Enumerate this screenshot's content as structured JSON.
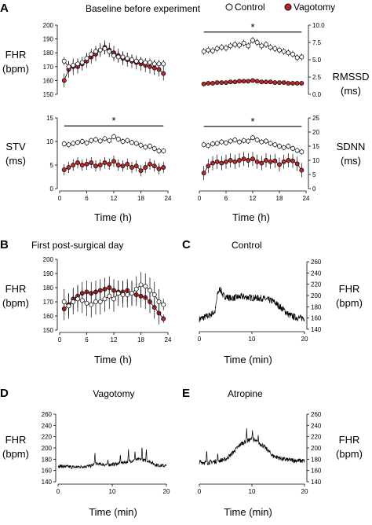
{
  "figure": {
    "panel_a": {
      "letter": "A",
      "title": "Baseline before experiment",
      "legend": {
        "control": "Control",
        "vagotomy": "Vagotomy"
      },
      "x_label": "Time  (h)",
      "x_ticks": [
        "0",
        "6",
        "12",
        "18",
        "24"
      ],
      "labels": {
        "fhr": [
          "FHR",
          "(bpm)"
        ],
        "rmssd": [
          "RMSSD",
          "(ms)"
        ],
        "stv": [
          "STV",
          "(ms)"
        ],
        "sdnn": [
          "SDNN",
          "(ms)"
        ]
      },
      "significance": "*"
    },
    "panel_b": {
      "letter": "B",
      "title": "First post-surgical day",
      "x_label": "Time  (h)",
      "y_label": [
        "FHR",
        "(bpm)"
      ]
    },
    "panel_c": {
      "letter": "C",
      "title": "Control",
      "x_label": "Time (min)",
      "y_label": [
        "FHR",
        "(bpm)"
      ]
    },
    "panel_d": {
      "letter": "D",
      "title": "Vagotomy",
      "x_label": "Time (min)",
      "y_label": [
        "FHR",
        "(bpm)"
      ]
    },
    "panel_e": {
      "letter": "E",
      "title": "Atropine",
      "x_label": "Time (min)",
      "y_label": [
        "FHR",
        "(bpm)"
      ]
    }
  },
  "colors": {
    "vagotomy": "#c0262c",
    "control": "#ffffff",
    "line": "#000000"
  },
  "chart_data": [
    {
      "id": "a_fhr",
      "type": "line",
      "ylabel": "FHR (bpm)",
      "ylim": [
        150,
        200
      ],
      "yticks": [
        "150",
        "160",
        "170",
        "180",
        "190",
        "200"
      ],
      "xlim": [
        0,
        24
      ],
      "x": [
        1,
        2,
        3,
        4,
        5,
        6,
        7,
        8,
        9,
        10,
        11,
        12,
        13,
        14,
        15,
        16,
        17,
        18,
        19,
        20,
        21,
        22,
        23
      ],
      "series": [
        {
          "name": "Control",
          "values": [
            174,
            170,
            171,
            172,
            173,
            176,
            179,
            181,
            182,
            183,
            181,
            178,
            177,
            177,
            176,
            175,
            174,
            174,
            173,
            173,
            172,
            172,
            172
          ],
          "err": [
            3,
            4,
            4,
            4,
            4,
            4,
            4,
            4,
            4,
            4,
            4,
            4,
            4,
            4,
            4,
            3,
            3,
            3,
            3,
            3,
            3,
            3,
            3
          ]
        },
        {
          "name": "Vagotomy",
          "values": [
            160,
            168,
            170,
            170,
            172,
            174,
            177,
            179,
            182,
            184,
            182,
            180,
            178,
            176,
            175,
            174,
            173,
            172,
            171,
            170,
            169,
            168,
            165
          ],
          "err": [
            5,
            6,
            6,
            5,
            5,
            5,
            5,
            5,
            5,
            5,
            5,
            5,
            5,
            5,
            5,
            5,
            5,
            5,
            5,
            5,
            5,
            5,
            5
          ]
        }
      ]
    },
    {
      "id": "a_rmssd",
      "type": "line",
      "ylabel": "RMSSD (ms)",
      "ylim": [
        0,
        10
      ],
      "yticks": [
        "0.0",
        "2.5",
        "5.0",
        "7.5",
        "10.0"
      ],
      "xlim": [
        0,
        24
      ],
      "x": [
        1,
        2,
        3,
        4,
        5,
        6,
        7,
        8,
        9,
        10,
        11,
        12,
        13,
        14,
        15,
        16,
        17,
        18,
        19,
        20,
        21,
        22,
        23
      ],
      "series": [
        {
          "name": "Control",
          "values": [
            6.2,
            6.4,
            6.3,
            6.6,
            6.8,
            6.7,
            7.0,
            7.2,
            7.1,
            7.4,
            7.0,
            7.8,
            7.5,
            7.0,
            7.2,
            6.8,
            6.6,
            6.4,
            6.2,
            6.0,
            5.8,
            5.3,
            5.4
          ],
          "err": [
            0.5,
            0.5,
            0.5,
            0.5,
            0.5,
            0.5,
            0.5,
            0.5,
            0.5,
            0.5,
            0.5,
            0.5,
            0.5,
            0.5,
            0.5,
            0.5,
            0.5,
            0.5,
            0.5,
            0.5,
            0.5,
            0.5,
            0.5
          ]
        },
        {
          "name": "Vagotomy",
          "values": [
            1.5,
            1.6,
            1.6,
            1.7,
            1.7,
            1.7,
            1.8,
            1.8,
            1.9,
            1.9,
            1.9,
            2.0,
            1.9,
            1.8,
            1.8,
            1.8,
            1.7,
            1.7,
            1.7,
            1.6,
            1.6,
            1.6,
            1.6
          ],
          "err": [
            0.2,
            0.2,
            0.2,
            0.2,
            0.2,
            0.2,
            0.2,
            0.2,
            0.2,
            0.2,
            0.2,
            0.2,
            0.2,
            0.2,
            0.2,
            0.2,
            0.2,
            0.2,
            0.2,
            0.2,
            0.2,
            0.2,
            0.2
          ]
        }
      ],
      "significance": {
        "x": [
          1,
          23
        ],
        "y": 9.0
      }
    },
    {
      "id": "a_stv",
      "type": "line",
      "ylabel": "STV (ms)",
      "ylim": [
        0,
        15
      ],
      "yticks": [
        "0",
        "5",
        "10",
        "15"
      ],
      "xlim": [
        0,
        24
      ],
      "x": [
        1,
        2,
        3,
        4,
        5,
        6,
        7,
        8,
        9,
        10,
        11,
        12,
        13,
        14,
        15,
        16,
        17,
        18,
        19,
        20,
        21,
        22,
        23
      ],
      "series": [
        {
          "name": "Control",
          "values": [
            9.5,
            9.3,
            9.6,
            9.8,
            10.0,
            9.7,
            10.2,
            10.4,
            10.1,
            10.6,
            10.2,
            11.0,
            10.5,
            10.0,
            10.2,
            9.8,
            9.6,
            9.2,
            8.8,
            9.0,
            8.5,
            8.0,
            8.0
          ],
          "err": [
            0.6,
            0.6,
            0.6,
            0.6,
            0.6,
            0.6,
            0.6,
            0.6,
            0.6,
            0.6,
            0.6,
            0.6,
            0.6,
            0.6,
            0.6,
            0.6,
            0.6,
            0.6,
            0.6,
            0.6,
            0.6,
            0.6,
            0.6
          ]
        },
        {
          "name": "Vagotomy",
          "values": [
            4.0,
            4.5,
            5.0,
            5.5,
            5.0,
            5.2,
            5.5,
            4.8,
            5.0,
            5.5,
            5.2,
            5.8,
            5.0,
            4.8,
            5.2,
            4.5,
            4.8,
            3.8,
            4.5,
            5.2,
            4.8,
            4.2,
            4.5
          ],
          "err": [
            1.2,
            1.2,
            1.2,
            1.2,
            1.2,
            1.2,
            1.2,
            1.2,
            1.2,
            1.2,
            1.2,
            1.2,
            1.2,
            1.2,
            1.2,
            1.2,
            1.2,
            1.2,
            1.2,
            1.2,
            1.2,
            1.2,
            1.2
          ]
        }
      ],
      "significance": {
        "x": [
          1,
          23
        ],
        "y": 13.3
      }
    },
    {
      "id": "a_sdnn",
      "type": "line",
      "ylabel": "SDNN (ms)",
      "ylim": [
        0,
        25
      ],
      "yticks": [
        "0",
        "5",
        "10",
        "15",
        "20",
        "25"
      ],
      "xlim": [
        0,
        24
      ],
      "x": [
        1,
        2,
        3,
        4,
        5,
        6,
        7,
        8,
        9,
        10,
        11,
        12,
        13,
        14,
        15,
        16,
        17,
        18,
        19,
        20,
        21,
        22,
        23
      ],
      "series": [
        {
          "name": "Control",
          "values": [
            15.5,
            15.2,
            15.8,
            16.0,
            16.5,
            16.2,
            16.8,
            17.2,
            16.5,
            17.0,
            16.8,
            18.0,
            17.2,
            16.5,
            16.8,
            16.0,
            15.5,
            15.0,
            14.5,
            15.0,
            14.2,
            13.5,
            13.0
          ],
          "err": [
            1.0,
            1.0,
            1.0,
            1.0,
            1.0,
            1.0,
            1.0,
            1.0,
            1.0,
            1.0,
            1.0,
            1.0,
            1.0,
            1.0,
            1.0,
            1.0,
            1.0,
            1.0,
            1.0,
            1.0,
            1.0,
            1.0,
            1.0
          ]
        },
        {
          "name": "Vagotomy",
          "values": [
            5.5,
            8.0,
            9.0,
            9.5,
            9.0,
            9.5,
            10.0,
            9.5,
            10.0,
            10.5,
            10.0,
            10.5,
            9.5,
            9.0,
            10.0,
            9.5,
            9.8,
            8.5,
            9.5,
            10.0,
            9.8,
            8.8,
            6.5
          ],
          "err": [
            2.5,
            2.5,
            2.5,
            2.5,
            2.5,
            2.5,
            2.5,
            2.5,
            2.5,
            2.5,
            2.5,
            2.5,
            2.5,
            2.5,
            2.5,
            2.5,
            2.5,
            2.5,
            2.5,
            2.5,
            2.5,
            2.5,
            2.5
          ]
        }
      ],
      "significance": {
        "x": [
          1,
          23
        ],
        "y": 22.0
      }
    },
    {
      "id": "b_fhr",
      "type": "line",
      "ylabel": "FHR (bpm)",
      "ylim": [
        150,
        200
      ],
      "yticks": [
        "150",
        "160",
        "170",
        "180",
        "190",
        "200"
      ],
      "xlim": [
        0,
        24
      ],
      "x": [
        1,
        2,
        3,
        4,
        5,
        6,
        7,
        8,
        9,
        10,
        11,
        12,
        13,
        14,
        15,
        16,
        17,
        18,
        19,
        20,
        21,
        22,
        23
      ],
      "series": [
        {
          "name": "Control",
          "values": [
            170,
            167,
            170,
            172,
            171,
            169,
            168,
            170,
            170,
            172,
            174,
            172,
            176,
            175,
            175,
            176,
            179,
            182,
            181,
            178,
            175,
            170,
            168
          ],
          "err": [
            9,
            9,
            9,
            9,
            9,
            9,
            9,
            9,
            9,
            9,
            9,
            9,
            9,
            9,
            9,
            9,
            9,
            9,
            9,
            9,
            9,
            9,
            4
          ]
        },
        {
          "name": "Vagotomy",
          "values": [
            165,
            168,
            172,
            174,
            176,
            177,
            176,
            177,
            178,
            179,
            180,
            178,
            177,
            177,
            178,
            176,
            175,
            174,
            173,
            170,
            166,
            162,
            158
          ],
          "err": [
            8,
            8,
            8,
            8,
            8,
            8,
            8,
            8,
            8,
            8,
            8,
            8,
            8,
            8,
            8,
            8,
            8,
            8,
            8,
            8,
            8,
            8,
            3
          ]
        }
      ]
    },
    {
      "id": "c_trace",
      "type": "line",
      "ylabel": "FHR (bpm)",
      "ylim": [
        140,
        260
      ],
      "yticks": [
        "140",
        "160",
        "180",
        "200",
        "220",
        "240",
        "260"
      ],
      "xlim": [
        0,
        20
      ],
      "xticks": [
        "0",
        "10",
        "20"
      ],
      "series": [
        {
          "name": "",
          "keypoints": [
            [
              0,
              158
            ],
            [
              2,
              165
            ],
            [
              3,
              172
            ],
            [
              3.5,
              205
            ],
            [
              4,
              212
            ],
            [
              4.5,
              200
            ],
            [
              6,
              195
            ],
            [
              8,
              198
            ],
            [
              10,
              196
            ],
            [
              12,
              195
            ],
            [
              14,
              190
            ],
            [
              16,
              175
            ],
            [
              17,
              166
            ],
            [
              18,
              162
            ],
            [
              19,
              160
            ],
            [
              20,
              160
            ]
          ],
          "noise": 6
        }
      ]
    },
    {
      "id": "d_trace",
      "type": "line",
      "ylabel": "FHR (bpm)",
      "ylim": [
        140,
        260
      ],
      "yticks": [
        "140",
        "160",
        "180",
        "200",
        "220",
        "240",
        "260"
      ],
      "xlim": [
        0,
        20
      ],
      "xticks": [
        "0",
        "10",
        "20"
      ],
      "series": [
        {
          "name": "",
          "keypoints": [
            [
              0,
              168
            ],
            [
              3,
              166
            ],
            [
              6,
              168
            ],
            [
              7,
              172
            ],
            [
              9,
              170
            ],
            [
              11,
              172
            ],
            [
              13,
              176
            ],
            [
              15,
              180
            ],
            [
              17,
              176
            ],
            [
              18,
              170
            ],
            [
              20,
              168
            ]
          ],
          "noise": 3,
          "spikes": [
            [
              6.8,
              193
            ],
            [
              9.2,
              180
            ],
            [
              11.5,
              190
            ],
            [
              13.0,
              198
            ],
            [
              14.2,
              195
            ],
            [
              15.5,
              205
            ],
            [
              16.3,
              200
            ]
          ]
        }
      ]
    },
    {
      "id": "e_trace",
      "type": "line",
      "ylabel": "FHR (bpm)",
      "ylim": [
        140,
        260
      ],
      "yticks": [
        "140",
        "160",
        "180",
        "200",
        "220",
        "240",
        "260"
      ],
      "xlim": [
        0,
        20
      ],
      "xticks": [
        "0",
        "10",
        "20"
      ],
      "series": [
        {
          "name": "",
          "keypoints": [
            [
              0,
              175
            ],
            [
              1.5,
              174
            ],
            [
              3,
              176
            ],
            [
              5,
              180
            ],
            [
              6,
              188
            ],
            [
              8,
              208
            ],
            [
              9,
              212
            ],
            [
              10,
              216
            ],
            [
              12,
              205
            ],
            [
              13,
              196
            ],
            [
              14,
              186
            ],
            [
              16,
              180
            ],
            [
              18,
              178
            ],
            [
              20,
              177
            ]
          ],
          "noise": 4,
          "spikes": [
            [
              1.4,
              198
            ],
            [
              3.5,
              192
            ],
            [
              9.0,
              235
            ],
            [
              10.1,
              232
            ],
            [
              11.2,
              224
            ]
          ]
        }
      ]
    }
  ]
}
